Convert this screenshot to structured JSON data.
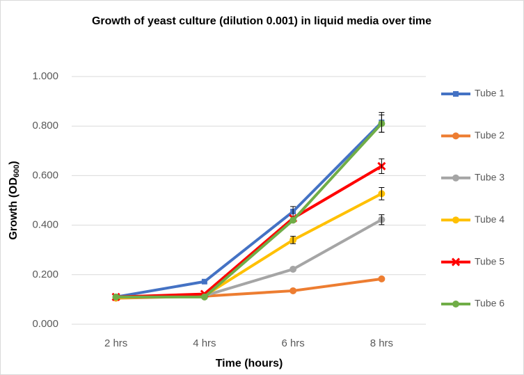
{
  "chart_data": {
    "type": "line",
    "title": "Growth of yeast culture (dilution 0.001) in liquid media over time",
    "x_label": "Time (hours)",
    "y_label": {
      "text": "Growth (OD",
      "sub": "600",
      "close": ")"
    },
    "categories": [
      "2 hrs",
      "4 hrs",
      "6 hrs",
      "8 hrs"
    ],
    "ylim": [
      0,
      1
    ],
    "yticks": [
      {
        "value": 0,
        "label": "0.000"
      },
      {
        "value": 0.2,
        "label": "0.200"
      },
      {
        "value": 0.4,
        "label": "0.400"
      },
      {
        "value": 0.6,
        "label": "0.600"
      },
      {
        "value": 0.8,
        "label": "0.800"
      },
      {
        "value": 1,
        "label": "1.000"
      }
    ],
    "grid": true,
    "legend": "right",
    "series": [
      {
        "name": "Tube 1",
        "color": "#4472c4",
        "marker": "square",
        "values": [
          0.11,
          0.172,
          0.455,
          0.815
        ],
        "errors": [
          null,
          null,
          0.02,
          0.04
        ]
      },
      {
        "name": "Tube 2",
        "color": "#ed7d31",
        "marker": "circle",
        "values": [
          0.105,
          0.113,
          0.135,
          0.183
        ],
        "errors": [
          null,
          null,
          null,
          null
        ]
      },
      {
        "name": "Tube 3",
        "color": "#a5a5a5",
        "marker": "circle",
        "values": [
          0.108,
          0.115,
          0.222,
          0.422
        ],
        "errors": [
          null,
          null,
          null,
          0.02
        ]
      },
      {
        "name": "Tube 4",
        "color": "#ffc000",
        "marker": "circle",
        "values": [
          0.107,
          0.115,
          0.34,
          0.527
        ],
        "errors": [
          null,
          null,
          0.015,
          0.025
        ]
      },
      {
        "name": "Tube 5",
        "color": "#ff0000",
        "marker": "x",
        "values": [
          0.11,
          0.122,
          0.428,
          0.638
        ],
        "errors": [
          null,
          null,
          null,
          0.03
        ]
      },
      {
        "name": "Tube 6",
        "color": "#70ad47",
        "marker": "circle",
        "values": [
          0.11,
          0.11,
          0.42,
          0.81
        ],
        "errors": [
          null,
          null,
          null,
          0.035
        ]
      }
    ]
  }
}
